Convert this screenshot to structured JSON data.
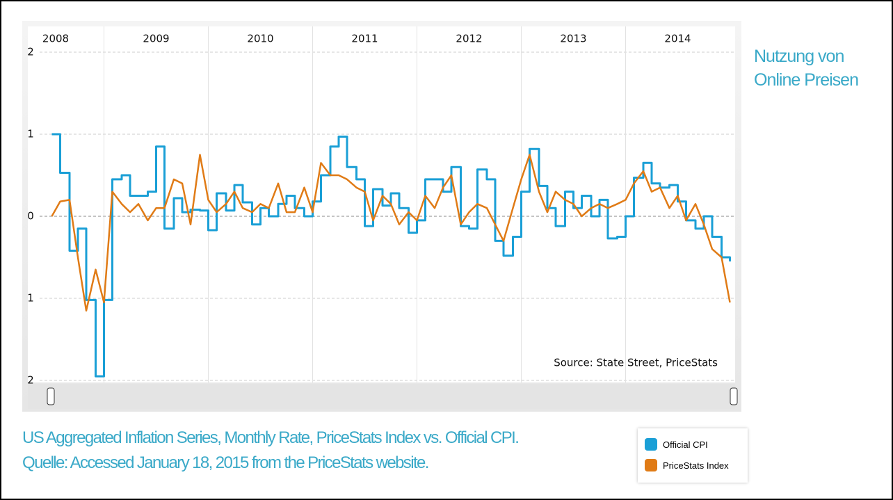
{
  "slide_title": "Nutzung von Online Preisen",
  "caption": [
    "US Aggregated Inflation Series, Monthly Rate, PriceStats Index vs. Official CPI.",
    "Quelle: Accessed January 18, 2015 from the PriceStats website."
  ],
  "chart_data": {
    "type": "line",
    "source": "Source: State Street, PriceStats",
    "x": [
      2008.5,
      2008.58,
      2008.67,
      2008.75,
      2008.83,
      2008.92,
      2009,
      2009.08,
      2009.17,
      2009.25,
      2009.33,
      2009.42,
      2009.5,
      2009.58,
      2009.67,
      2009.75,
      2009.83,
      2009.92,
      2010,
      2010.08,
      2010.17,
      2010.25,
      2010.33,
      2010.42,
      2010.5,
      2010.58,
      2010.67,
      2010.75,
      2010.83,
      2010.92,
      2011,
      2011.08,
      2011.17,
      2011.25,
      2011.33,
      2011.42,
      2011.5,
      2011.58,
      2011.67,
      2011.75,
      2011.83,
      2011.92,
      2012,
      2012.08,
      2012.17,
      2012.25,
      2012.33,
      2012.42,
      2012.5,
      2012.58,
      2012.67,
      2012.75,
      2012.83,
      2012.92,
      2013,
      2013.08,
      2013.17,
      2013.25,
      2013.33,
      2013.42,
      2013.5,
      2013.58,
      2013.67,
      2013.75,
      2013.83,
      2013.92,
      2014,
      2014.08,
      2014.17,
      2014.25,
      2014.33,
      2014.42,
      2014.5,
      2014.58,
      2014.67,
      2014.75,
      2014.83,
      2014.92,
      2015
    ],
    "xlim": [
      2008.27,
      2015.05
    ],
    "xticks": [
      2008,
      2009,
      2010,
      2011,
      2012,
      2013,
      2014
    ],
    "ylim": [
      -2,
      2
    ],
    "yticks": [
      {
        "value": -2,
        "label": "2"
      },
      {
        "value": -1,
        "label": "1"
      },
      0,
      1,
      2
    ],
    "grid": true,
    "series": [
      {
        "name": "Official CPI",
        "color": "#1a9fd6",
        "step": true,
        "values": [
          1.0,
          0.53,
          -0.42,
          -0.15,
          -1.02,
          -1.95,
          -1.02,
          0.45,
          0.5,
          0.25,
          0.25,
          0.3,
          0.85,
          -0.15,
          0.22,
          0.05,
          0.08,
          0.07,
          -0.17,
          0.28,
          0.07,
          0.38,
          0.17,
          -0.1,
          0.1,
          0.0,
          0.15,
          0.25,
          0.1,
          0.0,
          0.18,
          0.5,
          0.85,
          0.97,
          0.6,
          0.45,
          -0.12,
          0.33,
          0.13,
          0.28,
          0.1,
          -0.2,
          -0.05,
          0.45,
          0.45,
          0.3,
          0.6,
          -0.12,
          -0.15,
          0.57,
          0.45,
          -0.3,
          -0.48,
          -0.25,
          0.3,
          0.82,
          0.37,
          0.1,
          -0.12,
          0.3,
          0.1,
          0.25,
          0.0,
          0.2,
          -0.27,
          -0.25,
          0.0,
          0.47,
          0.65,
          0.4,
          0.35,
          0.38,
          0.18,
          -0.05,
          -0.15,
          0.0,
          -0.25,
          -0.5,
          -0.55
        ]
      },
      {
        "name": "PriceStats Index",
        "color": "#e07b16",
        "values": [
          0.0,
          0.18,
          0.2,
          -0.5,
          -1.15,
          -0.65,
          -1.05,
          0.3,
          0.15,
          0.05,
          0.15,
          -0.05,
          0.1,
          0.1,
          0.45,
          0.4,
          -0.1,
          0.75,
          0.2,
          0.05,
          0.15,
          0.3,
          0.1,
          0.05,
          0.15,
          0.1,
          0.4,
          0.05,
          0.05,
          0.35,
          0.05,
          0.65,
          0.5,
          0.5,
          0.45,
          0.35,
          0.3,
          -0.05,
          0.25,
          0.15,
          -0.1,
          0.05,
          -0.05,
          0.25,
          0.1,
          0.35,
          0.5,
          -0.1,
          0.05,
          0.15,
          0.1,
          -0.1,
          -0.3,
          0.1,
          0.45,
          0.75,
          0.3,
          0.05,
          0.3,
          0.2,
          0.15,
          0.0,
          0.1,
          0.15,
          0.1,
          0.15,
          0.2,
          0.4,
          0.55,
          0.3,
          0.35,
          0.1,
          0.25,
          -0.05,
          0.15,
          -0.1,
          -0.4,
          -0.5,
          -1.05
        ]
      }
    ]
  }
}
